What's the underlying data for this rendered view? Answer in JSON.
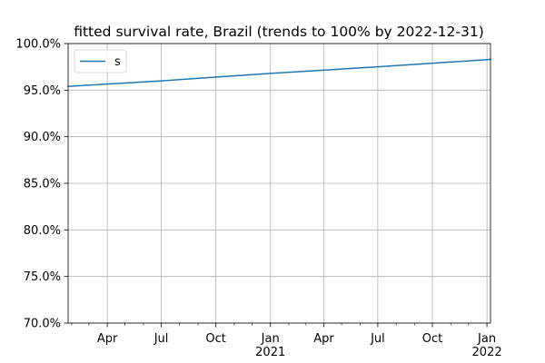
{
  "chart_data": {
    "type": "line",
    "title": "fitted survival rate, Brazil (trends to 100% by 2022-12-31)",
    "xlabel": "",
    "ylabel": "",
    "xlim": [
      "2020-01-26",
      "2022-01-07"
    ],
    "ylim": [
      70.0,
      100.0
    ],
    "grid": true,
    "legend": {
      "placement": "top-left",
      "entries": [
        "s"
      ]
    },
    "x_ticks": [
      {
        "date": "2020-04-01",
        "label": "Apr",
        "sublabel": ""
      },
      {
        "date": "2020-07-01",
        "label": "Jul",
        "sublabel": ""
      },
      {
        "date": "2020-10-01",
        "label": "Oct",
        "sublabel": ""
      },
      {
        "date": "2021-01-01",
        "label": "Jan",
        "sublabel": "2021"
      },
      {
        "date": "2021-04-01",
        "label": "Apr",
        "sublabel": ""
      },
      {
        "date": "2021-07-01",
        "label": "Jul",
        "sublabel": ""
      },
      {
        "date": "2021-10-01",
        "label": "Oct",
        "sublabel": ""
      },
      {
        "date": "2022-01-01",
        "label": "Jan",
        "sublabel": "2022"
      }
    ],
    "x_minor_ticks": [
      "2020-02-01",
      "2020-03-01",
      "2020-05-01",
      "2020-06-01",
      "2020-08-01",
      "2020-09-01",
      "2020-11-01",
      "2020-12-01",
      "2021-02-01",
      "2021-03-01",
      "2021-05-01",
      "2021-06-01",
      "2021-08-01",
      "2021-09-01",
      "2021-11-01",
      "2021-12-01"
    ],
    "y_ticks": [
      {
        "value": 70.0,
        "label": "70.0%"
      },
      {
        "value": 75.0,
        "label": "75.0%"
      },
      {
        "value": 80.0,
        "label": "80.0%"
      },
      {
        "value": 85.0,
        "label": "85.0%"
      },
      {
        "value": 90.0,
        "label": "90.0%"
      },
      {
        "value": 95.0,
        "label": "95.0%"
      },
      {
        "value": 100.0,
        "label": "100.0%"
      }
    ],
    "series": [
      {
        "name": "s",
        "color": "#1f77b4",
        "x": [
          "2020-01-26",
          "2020-07-01",
          "2021-01-01",
          "2021-07-01",
          "2022-01-07"
        ],
        "y": [
          95.4,
          96.0,
          96.8,
          97.5,
          98.3
        ]
      }
    ]
  }
}
